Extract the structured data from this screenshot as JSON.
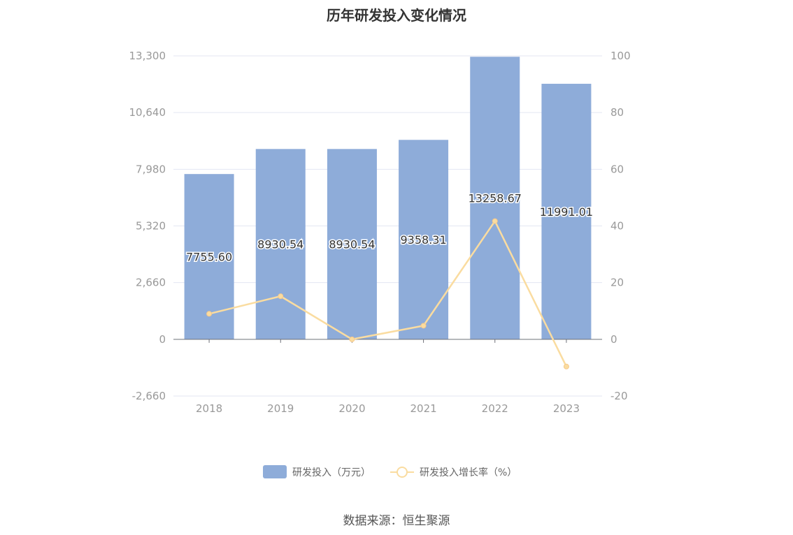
{
  "title": "历年研发投入变化情况",
  "source": "数据来源：恒生聚源",
  "colors": {
    "bar": "#8eacd9",
    "line": "#fadca0",
    "grid": "#e3e6f2",
    "axis": "#6e7079"
  },
  "chart_data": {
    "type": "bar",
    "categories": [
      "2018",
      "2019",
      "2020",
      "2021",
      "2022",
      "2023"
    ],
    "series": [
      {
        "name": "研发投入（万元）",
        "type": "bar",
        "axis": "left",
        "values": [
          7755.6,
          8930.54,
          8930.54,
          9358.31,
          13258.67,
          11991.01
        ],
        "labels": [
          "7755.60",
          "8930.54",
          "8930.54",
          "9358.31",
          "13258.67",
          "11991.01"
        ]
      },
      {
        "name": "研发投入增长率（%）",
        "type": "line",
        "axis": "right",
        "values": [
          9.0,
          15.2,
          0.0,
          4.8,
          41.7,
          -9.6
        ]
      }
    ],
    "y_left": {
      "min": -2660,
      "max": 13300,
      "ticks": [
        "-2,660",
        "0",
        "2,660",
        "5,320",
        "7,980",
        "10,640",
        "13,300"
      ],
      "tick_values": [
        -2660,
        0,
        2660,
        5320,
        7980,
        10640,
        13300
      ]
    },
    "y_right": {
      "min": -20,
      "max": 100,
      "ticks": [
        "-20",
        "0",
        "20",
        "40",
        "60",
        "80",
        "100"
      ],
      "tick_values": [
        -20,
        0,
        20,
        40,
        60,
        80,
        100
      ]
    },
    "grid": true,
    "legend": "bottom"
  }
}
